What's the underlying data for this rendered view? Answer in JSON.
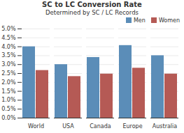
{
  "chart_data": {
    "type": "bar",
    "title": "SC to LC Conversion Rate",
    "subtitle": "Determined by SC / LC Records",
    "categories": [
      "World",
      "USA",
      "Canada",
      "Europe",
      "Australia"
    ],
    "series": [
      {
        "name": "Men",
        "color": "#5B8DB8",
        "values": [
          4.0,
          3.0,
          3.4,
          4.07,
          3.5
        ]
      },
      {
        "name": "Women",
        "color": "#B55A55",
        "values": [
          2.67,
          2.33,
          2.47,
          2.8,
          2.47
        ]
      }
    ],
    "ylim": [
      0.0,
      5.0
    ],
    "yticks": [
      {
        "value": 0.0,
        "label": "0.0%"
      },
      {
        "value": 0.5,
        "label": "0.5%"
      },
      {
        "value": 1.0,
        "label": "1.0%"
      },
      {
        "value": 1.5,
        "label": "1.5%"
      },
      {
        "value": 2.0,
        "label": "2.0%"
      },
      {
        "value": 2.5,
        "label": "2.5%"
      },
      {
        "value": 3.0,
        "label": "3.0%"
      },
      {
        "value": 3.5,
        "label": "3.5%"
      },
      {
        "value": 4.0,
        "label": "4.0%"
      },
      {
        "value": 4.5,
        "label": "4.5%"
      },
      {
        "value": 5.0,
        "label": "5.0%"
      }
    ],
    "grid": true,
    "legend": "upper right"
  }
}
